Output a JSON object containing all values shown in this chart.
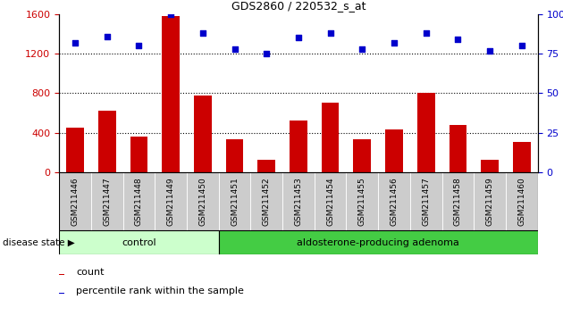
{
  "title": "GDS2860 / 220532_s_at",
  "samples": [
    "GSM211446",
    "GSM211447",
    "GSM211448",
    "GSM211449",
    "GSM211450",
    "GSM211451",
    "GSM211452",
    "GSM211453",
    "GSM211454",
    "GSM211455",
    "GSM211456",
    "GSM211457",
    "GSM211458",
    "GSM211459",
    "GSM211460"
  ],
  "counts": [
    450,
    620,
    360,
    1580,
    780,
    330,
    130,
    520,
    700,
    330,
    430,
    800,
    480,
    130,
    310
  ],
  "percentiles": [
    82,
    86,
    80,
    100,
    88,
    78,
    75,
    85,
    88,
    78,
    82,
    88,
    84,
    77,
    80
  ],
  "control_n": 5,
  "ylim_left": [
    0,
    1600
  ],
  "ylim_right": [
    0,
    100
  ],
  "yticks_left": [
    0,
    400,
    800,
    1200,
    1600
  ],
  "yticks_right": [
    0,
    25,
    50,
    75,
    100
  ],
  "bar_color": "#cc0000",
  "dot_color": "#0000cc",
  "control_color": "#ccffcc",
  "adenoma_color": "#44cc44",
  "label_color_left": "#cc0000",
  "label_color_right": "#0000cc",
  "group1_label": "control",
  "group2_label": "aldosterone-producing adenoma",
  "legend_count": "count",
  "legend_pct": "percentile rank within the sample",
  "disease_state_label": "disease state",
  "tick_bg": "#cccccc",
  "hgrid_vals": [
    400,
    800,
    1200
  ]
}
